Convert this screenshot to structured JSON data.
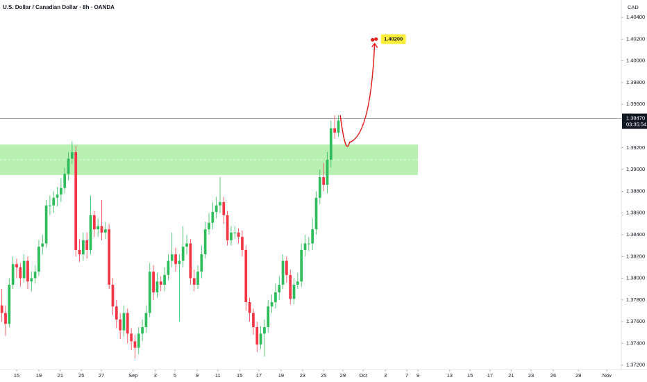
{
  "chart_data": {
    "type": "candlestick",
    "title": "U.S. Dollar / Canadian Dollar · 8h · OANDA",
    "currency": "CAD",
    "up_color": "#2ebd5a",
    "down_color": "#f23645",
    "xlim": [
      -0.5,
      167.5
    ],
    "ylim": [
      1.3716,
      1.4056
    ],
    "xticks": [
      {
        "value": 4,
        "label": "15"
      },
      {
        "value": 10,
        "label": "19"
      },
      {
        "value": 15.8,
        "label": "21"
      },
      {
        "value": 21.5,
        "label": "25"
      },
      {
        "value": 26.9,
        "label": "27"
      },
      {
        "value": 35.5,
        "label": "Sep"
      },
      {
        "value": 41.5,
        "label": "3"
      },
      {
        "value": 46.8,
        "label": "5"
      },
      {
        "value": 52.8,
        "label": "9"
      },
      {
        "value": 58.4,
        "label": "11"
      },
      {
        "value": 64.3,
        "label": "15"
      },
      {
        "value": 69.5,
        "label": "17"
      },
      {
        "value": 75.5,
        "label": "19"
      },
      {
        "value": 81.3,
        "label": "23"
      },
      {
        "value": 87,
        "label": "25"
      },
      {
        "value": 92.2,
        "label": "29"
      },
      {
        "value": 97.7,
        "label": "Oct"
      },
      {
        "value": 103.7,
        "label": "3"
      },
      {
        "value": 109.5,
        "label": "7"
      },
      {
        "value": 112.5,
        "label": "9"
      },
      {
        "value": 121.1,
        "label": "13"
      },
      {
        "value": 126.6,
        "label": "15"
      },
      {
        "value": 132,
        "label": "17"
      },
      {
        "value": 137.7,
        "label": "21"
      },
      {
        "value": 143.1,
        "label": "23"
      },
      {
        "value": 149.1,
        "label": "26"
      },
      {
        "value": 155.9,
        "label": "29"
      },
      {
        "value": 163.6,
        "label": "Nov"
      }
    ],
    "yticks": [
      {
        "value": 1.404,
        "label": "1.40400"
      },
      {
        "value": 1.402,
        "label": "1.40200"
      },
      {
        "value": 1.4,
        "label": "1.40000"
      },
      {
        "value": 1.398,
        "label": "1.39800"
      },
      {
        "value": 1.396,
        "label": "1.39600"
      },
      {
        "value": 1.392,
        "label": "1.39200"
      },
      {
        "value": 1.39,
        "label": "1.39000"
      },
      {
        "value": 1.388,
        "label": "1.38800"
      },
      {
        "value": 1.386,
        "label": "1.38600"
      },
      {
        "value": 1.384,
        "label": "1.38400"
      },
      {
        "value": 1.382,
        "label": "1.38200"
      },
      {
        "value": 1.38,
        "label": "1.38000"
      },
      {
        "value": 1.378,
        "label": "1.37800"
      },
      {
        "value": 1.376,
        "label": "1.37600"
      },
      {
        "value": 1.374,
        "label": "1.37400"
      },
      {
        "value": 1.372,
        "label": "1.37200"
      }
    ],
    "open": [
      1.3775,
      1.3768,
      1.3758,
      1.3794,
      1.3813,
      1.381,
      1.38,
      1.3816,
      1.3797,
      1.38,
      1.3806,
      1.3829,
      1.3832,
      1.3867,
      1.3867,
      1.3874,
      1.3877,
      1.3883,
      1.3896,
      1.391,
      1.3916,
      1.3826,
      1.3822,
      1.3835,
      1.3826,
      1.3858,
      1.3845,
      1.3848,
      1.3842,
      1.3845,
      1.3794,
      1.3774,
      1.3762,
      1.3752,
      1.3768,
      1.3749,
      1.3742,
      1.3736,
      1.3749,
      1.3755,
      1.3768,
      1.3806,
      1.3787,
      1.3797,
      1.3794,
      1.3803,
      1.3816,
      1.3822,
      1.3813,
      1.3816,
      1.3829,
      1.3832,
      1.38,
      1.3794,
      1.3806,
      1.3822,
      1.3845,
      1.3851,
      1.3861,
      1.3867,
      1.387,
      1.3858,
      1.3835,
      1.3842,
      1.3842,
      1.3838,
      1.3826,
      1.3778,
      1.3768,
      1.3755,
      1.3739,
      1.3749,
      1.3755,
      1.3774,
      1.3778,
      1.3787,
      1.3794,
      1.3816,
      1.3803,
      1.3781,
      1.3794,
      1.3797,
      1.3826,
      1.3832,
      1.3832,
      1.3845,
      1.3874,
      1.3893,
      1.3886,
      1.3909,
      1.3938,
      1.3934
    ],
    "high": [
      1.379,
      1.3775,
      1.38,
      1.382,
      1.3818,
      1.3814,
      1.3822,
      1.382,
      1.3806,
      1.3812,
      1.3835,
      1.384,
      1.3872,
      1.3876,
      1.388,
      1.3884,
      1.3892,
      1.3902,
      1.3916,
      1.3926,
      1.3922,
      1.3836,
      1.3842,
      1.3842,
      1.3876,
      1.3862,
      1.3855,
      1.3872,
      1.3852,
      1.385,
      1.38,
      1.378,
      1.3768,
      1.3775,
      1.3772,
      1.3754,
      1.3748,
      1.3755,
      1.3762,
      1.3775,
      1.3814,
      1.3812,
      1.3805,
      1.3802,
      1.381,
      1.3822,
      1.3842,
      1.3828,
      1.3822,
      1.3848,
      1.384,
      1.3836,
      1.3808,
      1.3812,
      1.383,
      1.3852,
      1.386,
      1.387,
      1.3875,
      1.3893,
      1.3875,
      1.3862,
      1.3848,
      1.3848,
      1.3846,
      1.3844,
      1.383,
      1.3782,
      1.3772,
      1.376,
      1.3756,
      1.3762,
      1.378,
      1.3785,
      1.3795,
      1.3802,
      1.3822,
      1.382,
      1.3808,
      1.38,
      1.3805,
      1.3832,
      1.384,
      1.3838,
      1.3855,
      1.388,
      1.39,
      1.3906,
      1.3916,
      1.3945,
      1.395,
      1.395
    ],
    "low": [
      1.376,
      1.3747,
      1.3755,
      1.379,
      1.38,
      1.3792,
      1.3796,
      1.379,
      1.3788,
      1.3795,
      1.3802,
      1.3822,
      1.3828,
      1.3858,
      1.386,
      1.3866,
      1.387,
      1.3878,
      1.389,
      1.3905,
      1.382,
      1.3815,
      1.3816,
      1.3818,
      1.3822,
      1.3838,
      1.3838,
      1.3835,
      1.3836,
      1.379,
      1.3766,
      1.3754,
      1.3744,
      1.3746,
      1.374,
      1.3734,
      1.3726,
      1.373,
      1.3742,
      1.375,
      1.3764,
      1.378,
      1.3782,
      1.3788,
      1.3788,
      1.3798,
      1.381,
      1.3806,
      1.376,
      1.381,
      1.3822,
      1.3794,
      1.3788,
      1.379,
      1.38,
      1.3818,
      1.384,
      1.3845,
      1.3855,
      1.386,
      1.385,
      1.383,
      1.383,
      1.3836,
      1.3832,
      1.382,
      1.377,
      1.376,
      1.3748,
      1.3732,
      1.3735,
      1.3728,
      1.375,
      1.3768,
      1.3772,
      1.378,
      1.379,
      1.3796,
      1.3776,
      1.3776,
      1.379,
      1.3792,
      1.382,
      1.3825,
      1.3826,
      1.384,
      1.3868,
      1.388,
      1.3878,
      1.3902,
      1.3928,
      1.393
    ],
    "close": [
      1.3768,
      1.3758,
      1.3794,
      1.3813,
      1.381,
      1.38,
      1.3816,
      1.3797,
      1.38,
      1.3806,
      1.3829,
      1.3832,
      1.3867,
      1.3867,
      1.3874,
      1.3877,
      1.3883,
      1.3896,
      1.391,
      1.3916,
      1.3826,
      1.3822,
      1.3835,
      1.3826,
      1.3858,
      1.3845,
      1.3848,
      1.3842,
      1.3845,
      1.3794,
      1.3774,
      1.3762,
      1.3752,
      1.3768,
      1.3749,
      1.3742,
      1.3736,
      1.3749,
      1.3755,
      1.3768,
      1.3806,
      1.3787,
      1.3797,
      1.3794,
      1.3803,
      1.3816,
      1.3822,
      1.3813,
      1.3816,
      1.3829,
      1.3832,
      1.38,
      1.3794,
      1.3806,
      1.3822,
      1.3845,
      1.3851,
      1.3861,
      1.3867,
      1.387,
      1.3858,
      1.3835,
      1.3842,
      1.3842,
      1.3838,
      1.3826,
      1.3778,
      1.3768,
      1.3755,
      1.3739,
      1.3749,
      1.3755,
      1.3774,
      1.3778,
      1.3787,
      1.3794,
      1.3816,
      1.3803,
      1.3781,
      1.3794,
      1.3797,
      1.3826,
      1.3832,
      1.3832,
      1.3845,
      1.3874,
      1.3893,
      1.3886,
      1.3909,
      1.3938,
      1.3934,
      1.3945
    ],
    "zone": {
      "x": [
        -0.5,
        112.5
      ],
      "y": [
        1.3895,
        1.3923
      ],
      "color": "#b7f0b1"
    },
    "last_price": {
      "value": 1.3947,
      "label": "1.39470"
    },
    "countdown": "03:35:54",
    "projection": {
      "x": [
        91.5,
        94,
        100.8
      ],
      "y": [
        1.395,
        1.3925,
        1.4016
      ],
      "color": "#e0201b"
    },
    "target": {
      "value": 1.402,
      "label": "1.40200",
      "color": "#ffee3b"
    }
  }
}
